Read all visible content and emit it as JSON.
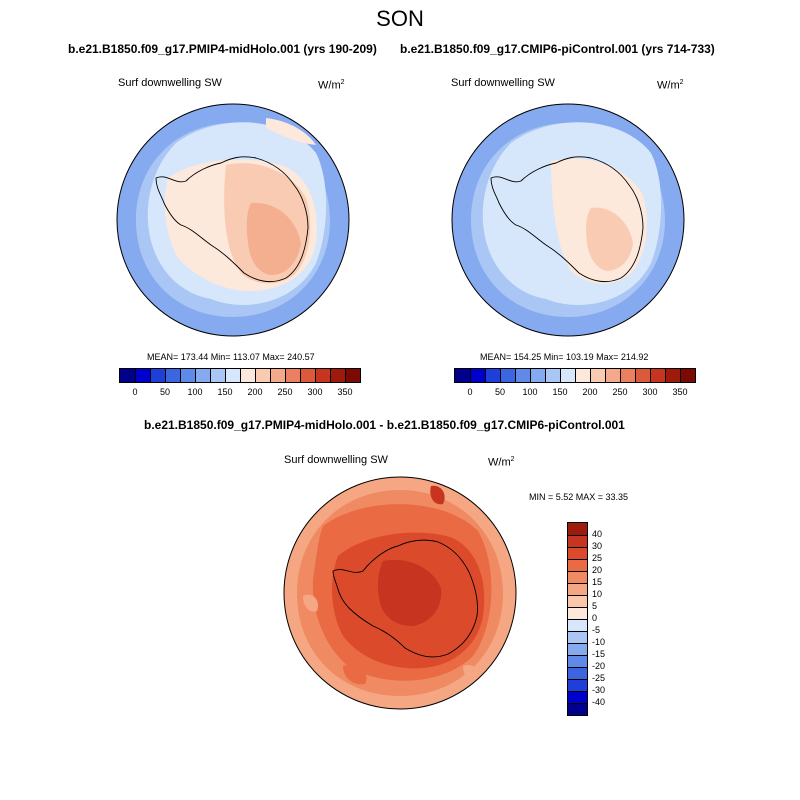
{
  "title": "SON",
  "panels": [
    {
      "subtitle": "b.e21.B1850.f09_g17.PMIP4-midHolo.001 (yrs 190-209)",
      "variable": "Surf downwelling SW",
      "unit_base": "W/m",
      "unit_exp": "2",
      "stats": "MEAN= 173.44  Min= 113.07  Max= 240.57"
    },
    {
      "subtitle": "b.e21.B1850.f09_g17.CMIP6-piControl.001 (yrs 714-733)",
      "variable": "Surf downwelling SW",
      "unit_base": "W/m",
      "unit_exp": "2",
      "stats": "MEAN= 154.25  Min= 103.19  Max= 214.92"
    }
  ],
  "diff_panel": {
    "subtitle": "b.e21.B1850.f09_g17.PMIP4-midHolo.001 - b.e21.B1850.f09_g17.CMIP6-piControl.001",
    "variable": "Surf downwelling SW",
    "unit_base": "W/m",
    "unit_exp": "2",
    "stats": "MIN =  5.52 MAX =  33.35"
  },
  "abs_colorbar": {
    "colors": [
      "#00008b",
      "#0000cd",
      "#1e3fd8",
      "#3b66e0",
      "#5f8ae8",
      "#86aaef",
      "#aac6f5",
      "#d6e6fb",
      "#fde8dc",
      "#f9cbb2",
      "#f3a98a",
      "#ea8060",
      "#dc5a3c",
      "#c7341f",
      "#9e1a0c",
      "#7a0a03"
    ],
    "ticks": [
      "0",
      "50",
      "100",
      "150",
      "200",
      "250",
      "300",
      "350"
    ]
  },
  "diff_colorbar": {
    "colors": [
      "#9e1a0c",
      "#c7341f",
      "#dc4a2c",
      "#ea6a44",
      "#f08a62",
      "#f5a783",
      "#fbc7a8",
      "#fde8dc",
      "#d6e6fb",
      "#aac6f5",
      "#86aaef",
      "#5f8ae8",
      "#3b66e0",
      "#1e3fd8",
      "#0000cd",
      "#00008b"
    ],
    "ticks": [
      "40",
      "30",
      "25",
      "20",
      "15",
      "10",
      "5",
      "0",
      "-5",
      "-10",
      "-15",
      "-20",
      "-25",
      "-30",
      "-40"
    ]
  }
}
